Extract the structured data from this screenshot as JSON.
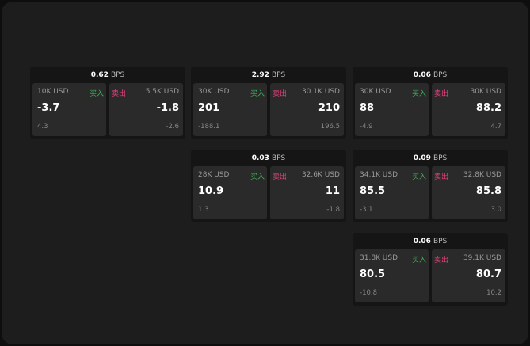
{
  "bps_unit": "BPS",
  "buy_label": "买入",
  "sell_label": "卖出",
  "colors": {
    "buy": "#3fae5a",
    "sell": "#e0407a"
  },
  "quotes": [
    {
      "bps": "0.62",
      "buy": {
        "size": "10K USD",
        "price": "-3.7",
        "change": "4.3"
      },
      "sell": {
        "size": "5.5K USD",
        "price": "-1.8",
        "change": "-2.6"
      }
    },
    {
      "bps": "2.92",
      "buy": {
        "size": "30K USD",
        "price": "201",
        "change": "-188.1"
      },
      "sell": {
        "size": "30.1K USD",
        "price": "210",
        "change": "196.5"
      }
    },
    {
      "bps": "0.06",
      "buy": {
        "size": "30K USD",
        "price": "88",
        "change": "-4.9"
      },
      "sell": {
        "size": "30K USD",
        "price": "88.2",
        "change": "4.7"
      }
    },
    {
      "bps": "0.03",
      "buy": {
        "size": "28K USD",
        "price": "10.9",
        "change": "1.3"
      },
      "sell": {
        "size": "32.6K USD",
        "price": "11",
        "change": "-1.8"
      }
    },
    {
      "bps": "0.09",
      "buy": {
        "size": "34.1K USD",
        "price": "85.5",
        "change": "-3.1"
      },
      "sell": {
        "size": "32.8K USD",
        "price": "85.8",
        "change": "3.0"
      }
    },
    {
      "bps": "0.06",
      "buy": {
        "size": "31.8K USD",
        "price": "80.5",
        "change": "-10.8"
      },
      "sell": {
        "size": "39.1K USD",
        "price": "80.7",
        "change": "10.2"
      }
    }
  ]
}
